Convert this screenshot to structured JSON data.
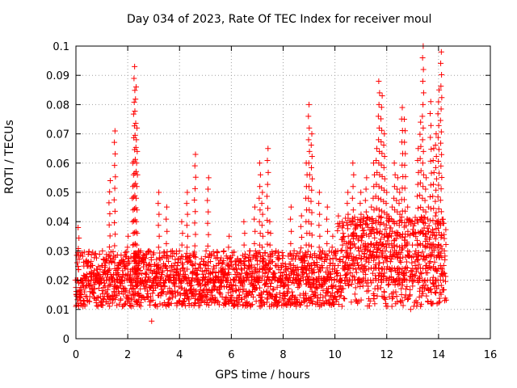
{
  "chart_data": {
    "type": "scatter",
    "title": "Day 034 of 2023, Rate Of TEC Index for receiver moul",
    "xlabel": "GPS time / hours",
    "ylabel": "ROTI / TECUs",
    "xlim": [
      0,
      16
    ],
    "ylim": [
      0,
      0.1
    ],
    "xticks": [
      "0",
      "2",
      "4",
      "6",
      "8",
      "10",
      "12",
      "14",
      "16"
    ],
    "yticks": [
      "0",
      "0.01",
      "0.02",
      "0.03",
      "0.04",
      "0.05",
      "0.06",
      "0.07",
      "0.08",
      "0.09",
      "0.1"
    ],
    "grid": true,
    "marker": "+",
    "color": "#ff0000",
    "series": [
      {
        "name": "ROTI",
        "x": [
          0.0,
          0.1,
          0.2,
          0.3,
          0.4,
          0.5,
          0.6,
          0.7,
          0.8,
          0.9,
          1.0,
          1.1,
          1.2,
          1.3,
          1.4,
          1.5,
          1.6,
          1.7,
          1.8,
          1.9,
          2.0,
          2.1,
          2.2,
          2.25,
          2.3,
          2.35,
          2.4,
          2.5,
          2.6,
          2.7,
          2.8,
          2.9,
          3.0,
          3.1,
          3.2,
          3.3,
          3.4,
          3.5,
          3.6,
          3.7,
          3.8,
          3.9,
          4.0,
          4.1,
          4.2,
          4.3,
          4.4,
          4.5,
          4.6,
          4.7,
          4.8,
          4.9,
          5.0,
          5.1,
          5.2,
          5.3,
          5.4,
          5.5,
          5.6,
          5.7,
          5.8,
          5.9,
          6.0,
          6.1,
          6.2,
          6.3,
          6.4,
          6.5,
          6.6,
          6.7,
          6.8,
          6.9,
          7.0,
          7.1,
          7.2,
          7.3,
          7.4,
          7.5,
          7.6,
          7.7,
          7.8,
          7.9,
          8.0,
          8.1,
          8.2,
          8.3,
          8.4,
          8.5,
          8.6,
          8.7,
          8.8,
          8.9,
          9.0,
          9.1,
          9.2,
          9.3,
          9.4,
          9.5,
          9.6,
          9.7,
          9.8,
          9.9,
          10.0,
          10.1,
          10.2,
          10.3,
          10.4,
          10.5,
          10.6,
          10.7,
          10.8,
          10.9,
          11.0,
          11.1,
          11.2,
          11.3,
          11.4,
          11.5,
          11.6,
          11.7,
          11.8,
          11.9,
          12.0,
          12.1,
          12.2,
          12.3,
          12.4,
          12.5,
          12.6,
          12.7,
          12.8,
          12.9,
          13.0,
          13.1,
          13.2,
          13.3,
          13.4,
          13.5,
          13.6,
          13.7,
          13.8,
          13.9,
          14.0,
          14.1,
          14.2
        ],
        "y": [
          0.015,
          0.038,
          0.02,
          0.016,
          0.022,
          0.018,
          0.025,
          0.017,
          0.021,
          0.019,
          0.03,
          0.018,
          0.022,
          0.054,
          0.02,
          0.071,
          0.025,
          0.018,
          0.022,
          0.028,
          0.035,
          0.02,
          0.06,
          0.093,
          0.086,
          0.072,
          0.03,
          0.02,
          0.018,
          0.022,
          0.03,
          0.006,
          0.02,
          0.025,
          0.05,
          0.022,
          0.018,
          0.045,
          0.02,
          0.03,
          0.018,
          0.025,
          0.02,
          0.04,
          0.022,
          0.05,
          0.018,
          0.025,
          0.063,
          0.02,
          0.018,
          0.022,
          0.03,
          0.055,
          0.02,
          0.018,
          0.025,
          0.02,
          0.018,
          0.022,
          0.02,
          0.035,
          0.017,
          0.02,
          0.022,
          0.02,
          0.018,
          0.04,
          0.022,
          0.03,
          0.018,
          0.045,
          0.02,
          0.06,
          0.05,
          0.025,
          0.065,
          0.04,
          0.022,
          0.03,
          0.02,
          0.025,
          0.018,
          0.022,
          0.02,
          0.045,
          0.03,
          0.02,
          0.018,
          0.042,
          0.025,
          0.06,
          0.08,
          0.07,
          0.025,
          0.02,
          0.05,
          0.03,
          0.02,
          0.045,
          0.022,
          0.035,
          0.03,
          0.025,
          0.02,
          0.04,
          0.03,
          0.05,
          0.025,
          0.06,
          0.035,
          0.03,
          0.05,
          0.04,
          0.055,
          0.035,
          0.045,
          0.06,
          0.065,
          0.088,
          0.083,
          0.07,
          0.05,
          0.04,
          0.045,
          0.06,
          0.055,
          0.05,
          0.079,
          0.075,
          0.045,
          0.01,
          0.04,
          0.03,
          0.065,
          0.074,
          0.1,
          0.055,
          0.045,
          0.081,
          0.065,
          0.07,
          0.085,
          0.098,
          0.03
        ]
      }
    ]
  }
}
